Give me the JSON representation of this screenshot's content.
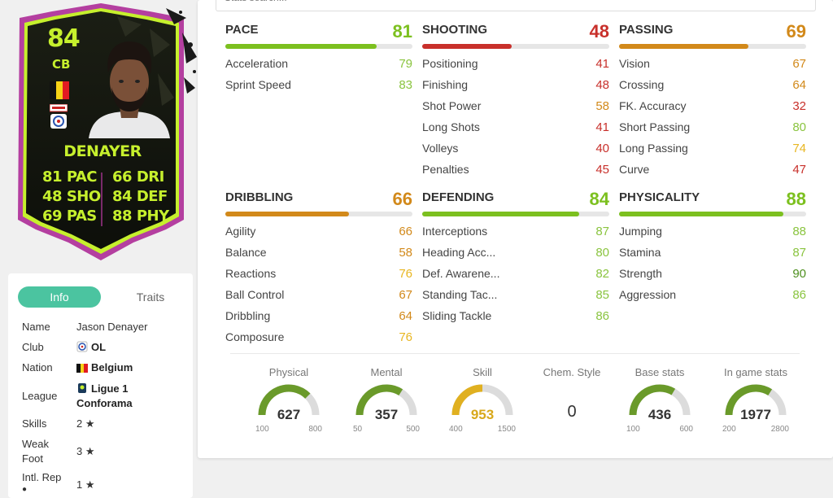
{
  "card": {
    "rating": "84",
    "position": "CB",
    "name": "DENAYER",
    "stats_left": [
      "81 PAC",
      "48 SHO",
      "69 PAS"
    ],
    "stats_right": [
      "66 DRI",
      "84 DEF",
      "88 PHY"
    ],
    "nation_colors": [
      "#111111",
      "#f7d117",
      "#e21b22"
    ],
    "accent": "#c6f02d"
  },
  "info_tabs": {
    "info": "Info",
    "traits": "Traits"
  },
  "info": {
    "name_label": "Name",
    "name_value": "Jason Denayer",
    "club_label": "Club",
    "club_value": "OL",
    "nation_label": "Nation",
    "nation_value": "Belgium",
    "league_label": "League",
    "league_value_1": "Ligue 1",
    "league_value_2": "Conforama",
    "skills_label": "Skills",
    "skills_value": "2 ★",
    "weakfoot_label_1": "Weak",
    "weakfoot_label_2": "Foot",
    "weakfoot_value": "3 ★",
    "intlrep_label": "Intl. Rep",
    "intlrep_value": "1 ★"
  },
  "search": {
    "placeholder": "Stats search..."
  },
  "categories": [
    {
      "name": "PACE",
      "value": "81",
      "fill": 0.81,
      "color": "#7cc01f",
      "subs": [
        {
          "name": "Acceleration",
          "value": "79",
          "cls": "c-lgreen"
        },
        {
          "name": "Sprint Speed",
          "value": "83",
          "cls": "c-lgreen"
        }
      ]
    },
    {
      "name": "SHOOTING",
      "value": "48",
      "fill": 0.48,
      "color": "#c8302b",
      "subs": [
        {
          "name": "Positioning",
          "value": "41",
          "cls": "c-red"
        },
        {
          "name": "Finishing",
          "value": "48",
          "cls": "c-red"
        },
        {
          "name": "Shot Power",
          "value": "58",
          "cls": "c-orange"
        },
        {
          "name": "Long Shots",
          "value": "41",
          "cls": "c-red"
        },
        {
          "name": "Volleys",
          "value": "40",
          "cls": "c-red"
        },
        {
          "name": "Penalties",
          "value": "45",
          "cls": "c-red"
        }
      ]
    },
    {
      "name": "PASSING",
      "value": "69",
      "fill": 0.69,
      "color": "#d2891a",
      "subs": [
        {
          "name": "Vision",
          "value": "67",
          "cls": "c-orange"
        },
        {
          "name": "Crossing",
          "value": "64",
          "cls": "c-orange"
        },
        {
          "name": "FK. Accuracy",
          "value": "32",
          "cls": "c-red"
        },
        {
          "name": "Short Passing",
          "value": "80",
          "cls": "c-lgreen"
        },
        {
          "name": "Long Passing",
          "value": "74",
          "cls": "c-yellow"
        },
        {
          "name": "Curve",
          "value": "47",
          "cls": "c-red"
        }
      ]
    },
    {
      "name": "DRIBBLING",
      "value": "66",
      "fill": 0.66,
      "color": "#d2891a",
      "subs": [
        {
          "name": "Agility",
          "value": "66",
          "cls": "c-orange"
        },
        {
          "name": "Balance",
          "value": "58",
          "cls": "c-orange"
        },
        {
          "name": "Reactions",
          "value": "76",
          "cls": "c-yellow"
        },
        {
          "name": "Ball Control",
          "value": "67",
          "cls": "c-orange"
        },
        {
          "name": "Dribbling",
          "value": "64",
          "cls": "c-orange"
        },
        {
          "name": "Composure",
          "value": "76",
          "cls": "c-yellow"
        }
      ]
    },
    {
      "name": "DEFENDING",
      "value": "84",
      "fill": 0.84,
      "color": "#7cc01f",
      "subs": [
        {
          "name": "Interceptions",
          "value": "87",
          "cls": "c-lgreen"
        },
        {
          "name": "Heading Acc...",
          "value": "80",
          "cls": "c-lgreen"
        },
        {
          "name": "Def. Awarene...",
          "value": "82",
          "cls": "c-lgreen"
        },
        {
          "name": "Standing Tac...",
          "value": "85",
          "cls": "c-lgreen"
        },
        {
          "name": "Sliding Tackle",
          "value": "86",
          "cls": "c-lgreen"
        }
      ]
    },
    {
      "name": "PHYSICALITY",
      "value": "88",
      "fill": 0.88,
      "color": "#7cc01f",
      "subs": [
        {
          "name": "Jumping",
          "value": "88",
          "cls": "c-lgreen"
        },
        {
          "name": "Stamina",
          "value": "87",
          "cls": "c-lgreen"
        },
        {
          "name": "Strength",
          "value": "90",
          "cls": "c-dgreen"
        },
        {
          "name": "Aggression",
          "value": "86",
          "cls": "c-lgreen"
        }
      ]
    }
  ],
  "gauges": [
    {
      "label": "Physical",
      "value": "627",
      "min": "100",
      "max": "800",
      "fraction": 0.75,
      "color": "#6a9a2a"
    },
    {
      "label": "Mental",
      "value": "357",
      "min": "50",
      "max": "500",
      "fraction": 0.68,
      "color": "#6a9a2a"
    },
    {
      "label": "Skill",
      "value": "953",
      "min": "400",
      "max": "1500",
      "fraction": 0.5,
      "color": "#e0b020"
    },
    {
      "label": "Chem. Style",
      "value": "0"
    },
    {
      "label": "Base stats",
      "value": "436",
      "min": "100",
      "max": "600",
      "fraction": 0.67,
      "color": "#6a9a2a"
    },
    {
      "label": "In game stats",
      "value": "1977",
      "min": "200",
      "max": "2800",
      "fraction": 0.68,
      "color": "#6a9a2a"
    }
  ]
}
